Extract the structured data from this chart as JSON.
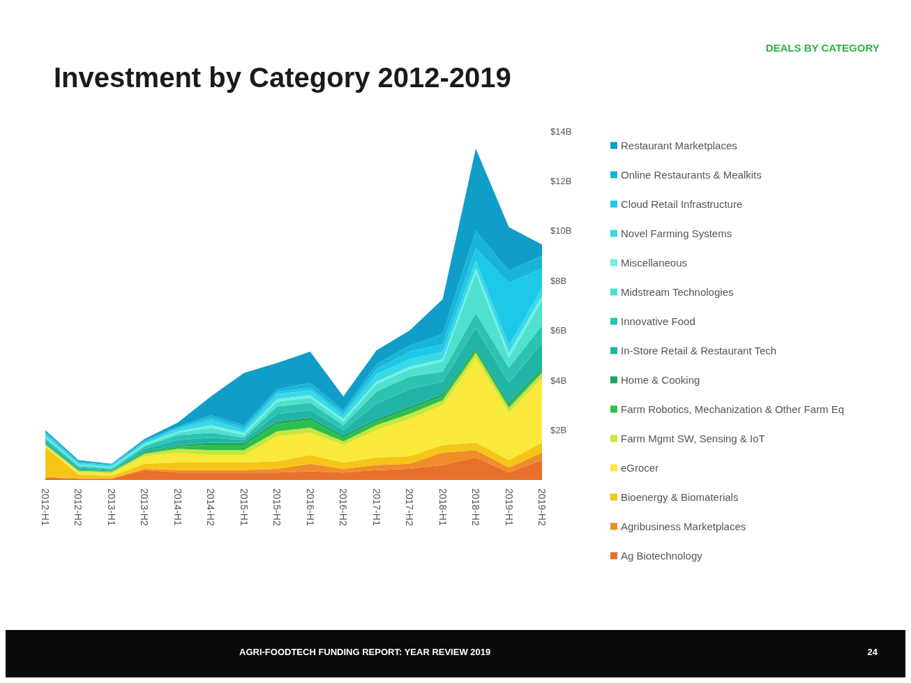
{
  "chart_data": {
    "type": "area",
    "title": "Investment by Category 2012-2019",
    "subtitle": "DEALS BY CATEGORY",
    "annotations": [
      "AGRI-FOODTECH FUNDING REPORT: YEAR REVIEW 2019",
      "24"
    ],
    "categories": [
      "2012-H1",
      "2012-H2",
      "2013-H1",
      "2013-H2",
      "2014-H1",
      "2014-H2",
      "2015-H1",
      "2015-H2",
      "2016-H1",
      "2016-H2",
      "2017-H1",
      "2017-H2",
      "2018-H1",
      "2018-H2",
      "2019-H1",
      "2019-H2"
    ],
    "stacked": true,
    "series": [
      {
        "name": "Ag Biotechnology",
        "color": "#e8702a",
        "values": [
          0.1,
          0.05,
          0.05,
          0.4,
          0.3,
          0.3,
          0.3,
          0.3,
          0.35,
          0.3,
          0.4,
          0.45,
          0.6,
          0.9,
          0.3,
          0.8
        ]
      },
      {
        "name": "Agribusiness Marketplaces",
        "color": "#f08c2a",
        "values": [
          0.02,
          0.02,
          0.02,
          0.05,
          0.1,
          0.1,
          0.1,
          0.15,
          0.3,
          0.15,
          0.2,
          0.2,
          0.5,
          0.3,
          0.2,
          0.3
        ]
      },
      {
        "name": "Bioenergy & Biomaterials",
        "color": "#f5c518",
        "values": [
          1.2,
          0.15,
          0.1,
          0.2,
          0.3,
          0.3,
          0.3,
          0.3,
          0.35,
          0.25,
          0.3,
          0.3,
          0.3,
          0.3,
          0.3,
          0.4
        ]
      },
      {
        "name": "eGrocer",
        "color": "#f9e93a",
        "values": [
          0.05,
          0.1,
          0.1,
          0.3,
          0.4,
          0.3,
          0.3,
          1.0,
          0.9,
          0.7,
          1.1,
          1.5,
          1.6,
          3.4,
          1.9,
          2.6
        ]
      },
      {
        "name": "Farm Mgmt SW, Sensing & IoT",
        "color": "#c8e63c",
        "values": [
          0.05,
          0.05,
          0.05,
          0.1,
          0.15,
          0.2,
          0.2,
          0.2,
          0.2,
          0.15,
          0.2,
          0.2,
          0.2,
          0.2,
          0.2,
          0.2
        ]
      },
      {
        "name": "Farm Robotics, Mechanization & Other Farm Eq",
        "color": "#2dbf4e",
        "values": [
          0.03,
          0.02,
          0.02,
          0.05,
          0.1,
          0.2,
          0.2,
          0.3,
          0.3,
          0.15,
          0.15,
          0.2,
          0.15,
          0.1,
          0.1,
          0.1
        ]
      },
      {
        "name": "Home & Cooking",
        "color": "#1fa45f",
        "values": [
          0.02,
          0.01,
          0.01,
          0.05,
          0.05,
          0.1,
          0.1,
          0.1,
          0.1,
          0.1,
          0.1,
          0.1,
          0.1,
          0.1,
          0.1,
          0.1
        ]
      },
      {
        "name": "In-Store Retail & Restaurant Tech",
        "color": "#22b3a8",
        "values": [
          0.1,
          0.1,
          0.05,
          0.1,
          0.2,
          0.2,
          0.1,
          0.3,
          0.3,
          0.2,
          0.6,
          0.7,
          0.5,
          0.8,
          0.8,
          1.0
        ]
      },
      {
        "name": "Innovative Food",
        "color": "#2cc4b0",
        "values": [
          0.1,
          0.05,
          0.05,
          0.1,
          0.2,
          0.2,
          0.1,
          0.3,
          0.3,
          0.2,
          0.5,
          0.5,
          0.4,
          0.6,
          0.6,
          0.7
        ]
      },
      {
        "name": "Midstream Technologies",
        "color": "#4fe0cf",
        "values": [
          0.05,
          0.05,
          0.05,
          0.05,
          0.1,
          0.2,
          0.1,
          0.2,
          0.2,
          0.15,
          0.3,
          0.3,
          0.4,
          1.6,
          0.4,
          1.0
        ]
      },
      {
        "name": "Miscellaneous",
        "color": "#6ff0e4",
        "values": [
          0.03,
          0.02,
          0.02,
          0.05,
          0.05,
          0.1,
          0.1,
          0.1,
          0.1,
          0.1,
          0.1,
          0.1,
          0.1,
          0.2,
          0.2,
          0.2
        ]
      },
      {
        "name": "Novel Farming Systems",
        "color": "#3ad8e6",
        "values": [
          0.1,
          0.05,
          0.05,
          0.05,
          0.1,
          0.2,
          0.1,
          0.2,
          0.2,
          0.15,
          0.3,
          0.3,
          0.3,
          0.3,
          0.3,
          0.3
        ]
      },
      {
        "name": "Cloud Retail Infrastructure",
        "color": "#1ec8e8",
        "values": [
          0.05,
          0.03,
          0.03,
          0.05,
          0.05,
          0.1,
          0.1,
          0.1,
          0.1,
          0.1,
          0.2,
          0.3,
          0.3,
          0.5,
          2.5,
          0.8
        ]
      },
      {
        "name": "Online Restaurants & Mealkits",
        "color": "#18b4d8",
        "values": [
          0.05,
          0.05,
          0.02,
          0.05,
          0.05,
          0.1,
          0.1,
          0.1,
          0.2,
          0.1,
          0.2,
          0.25,
          0.4,
          0.7,
          0.5,
          0.5
        ]
      },
      {
        "name": "Restaurant Marketplaces",
        "color": "#109ec8",
        "values": [
          0.05,
          0.05,
          0.03,
          0.05,
          0.15,
          0.75,
          2.1,
          1.05,
          1.25,
          0.55,
          0.55,
          0.6,
          1.4,
          3.3,
          1.75,
          0.45
        ]
      }
    ],
    "ylim": [
      0,
      14
    ],
    "yticks": [
      {
        "value": 2,
        "label": "$2B"
      },
      {
        "value": 4,
        "label": "$4B"
      },
      {
        "value": 6,
        "label": "$6B"
      },
      {
        "value": 8,
        "label": "$8B"
      },
      {
        "value": 10,
        "label": "$10B"
      },
      {
        "value": 12,
        "label": "$12B"
      },
      {
        "value": 14,
        "label": "$14B"
      }
    ],
    "grid": false,
    "legend": "right"
  }
}
